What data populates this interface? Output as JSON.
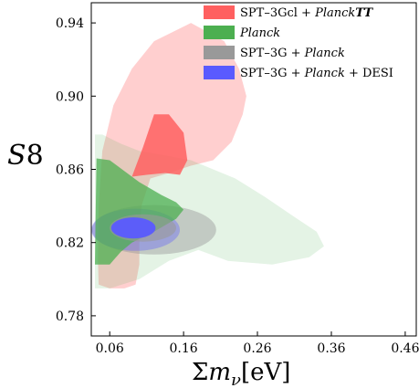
{
  "chart_data": {
    "type": "contour",
    "xlabel": "Σm_ν[eV]",
    "ylabel": "S8",
    "xlim": [
      0.035,
      0.475
    ],
    "ylim": [
      0.769,
      0.951
    ],
    "xticks": [
      "0.06",
      "0.16",
      "0.26",
      "0.36",
      "0.46"
    ],
    "xtick_values": [
      0.06,
      0.16,
      0.26,
      0.36,
      0.46
    ],
    "yticks": [
      "0.78",
      "0.82",
      "0.86",
      "0.90",
      "0.94"
    ],
    "ytick_values": [
      0.78,
      0.82,
      0.86,
      0.9,
      0.94
    ],
    "legend_position": "top-right",
    "series": [
      {
        "name": "SPT–3Gcl + PlanckTT",
        "color": "#ff6060",
        "outer": [
          [
            0.045,
            0.797
          ],
          [
            0.06,
            0.795
          ],
          [
            0.08,
            0.795
          ],
          [
            0.095,
            0.797
          ],
          [
            0.1,
            0.808
          ],
          [
            0.1,
            0.82
          ],
          [
            0.103,
            0.84
          ],
          [
            0.115,
            0.855
          ],
          [
            0.14,
            0.858
          ],
          [
            0.17,
            0.862
          ],
          [
            0.2,
            0.865
          ],
          [
            0.225,
            0.875
          ],
          [
            0.24,
            0.89
          ],
          [
            0.245,
            0.9
          ],
          [
            0.235,
            0.915
          ],
          [
            0.215,
            0.93
          ],
          [
            0.17,
            0.94
          ],
          [
            0.12,
            0.93
          ],
          [
            0.09,
            0.915
          ],
          [
            0.065,
            0.895
          ],
          [
            0.05,
            0.87
          ],
          [
            0.045,
            0.84
          ],
          [
            0.044,
            0.81
          ]
        ],
        "inner": [
          [
            0.09,
            0.856
          ],
          [
            0.11,
            0.857
          ],
          [
            0.135,
            0.858
          ],
          [
            0.155,
            0.857
          ],
          [
            0.165,
            0.865
          ],
          [
            0.16,
            0.88
          ],
          [
            0.14,
            0.89
          ],
          [
            0.12,
            0.89
          ],
          [
            0.105,
            0.872
          ]
        ]
      },
      {
        "name": "Planck",
        "color": "#4caf50",
        "outer": [
          [
            0.04,
            0.795
          ],
          [
            0.06,
            0.795
          ],
          [
            0.1,
            0.8
          ],
          [
            0.14,
            0.81
          ],
          [
            0.18,
            0.816
          ],
          [
            0.22,
            0.81
          ],
          [
            0.28,
            0.808
          ],
          [
            0.33,
            0.812
          ],
          [
            0.35,
            0.818
          ],
          [
            0.34,
            0.826
          ],
          [
            0.31,
            0.834
          ],
          [
            0.27,
            0.845
          ],
          [
            0.23,
            0.855
          ],
          [
            0.2,
            0.86
          ],
          [
            0.17,
            0.865
          ],
          [
            0.13,
            0.868
          ],
          [
            0.1,
            0.87
          ],
          [
            0.075,
            0.874
          ],
          [
            0.05,
            0.879
          ],
          [
            0.04,
            0.879
          ]
        ],
        "inner": [
          [
            0.04,
            0.808
          ],
          [
            0.06,
            0.808
          ],
          [
            0.075,
            0.815
          ],
          [
            0.09,
            0.82
          ],
          [
            0.12,
            0.826
          ],
          [
            0.15,
            0.833
          ],
          [
            0.16,
            0.838
          ],
          [
            0.15,
            0.842
          ],
          [
            0.13,
            0.846
          ],
          [
            0.1,
            0.853
          ],
          [
            0.08,
            0.859
          ],
          [
            0.06,
            0.865
          ],
          [
            0.042,
            0.866
          ]
        ]
      },
      {
        "name": "SPT–3G + Planck",
        "color": "#999999",
        "outer": {
          "cx": 0.12,
          "cy": 0.827,
          "rx": 0.084,
          "ry": 0.0135
        },
        "inner": {
          "cx": 0.105,
          "cy": 0.828,
          "rx": 0.045,
          "ry": 0.0075
        }
      },
      {
        "name": "SPT–3G + Planck + DESI",
        "color": "#5a5aff",
        "outer": {
          "cx": 0.095,
          "cy": 0.827,
          "rx": 0.06,
          "ry": 0.0115
        },
        "inner": {
          "cx": 0.092,
          "cy": 0.828,
          "rx": 0.03,
          "ry": 0.0058
        }
      }
    ]
  }
}
